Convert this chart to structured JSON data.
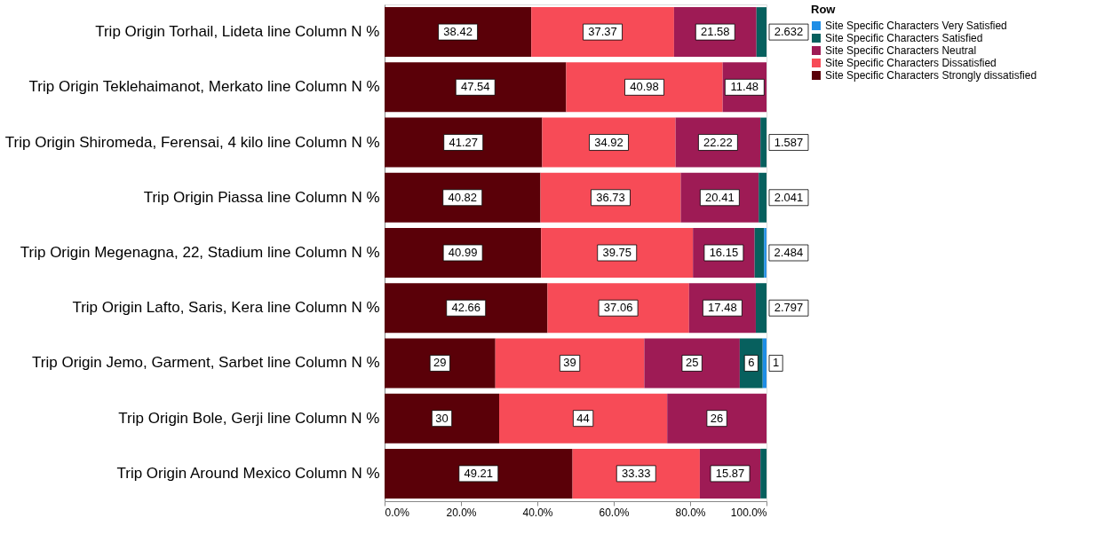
{
  "chart_data": {
    "type": "bar",
    "orientation": "horizontal",
    "stacked": true,
    "legend_title": "Row",
    "legend": "top right",
    "grid": false,
    "categories": [
      "Trip Origin Torhail, Lideta line Column N %",
      "Trip Origin Teklehaimanot, Merkato line Column N %",
      "Trip Origin Shiromeda, Ferensai, 4 kilo line Column N %",
      "Trip Origin Piassa line Column N %",
      "Trip Origin Megenagna, 22, Stadium line Column N %",
      "Trip Origin Lafto, Saris, Kera line Column N %",
      "Trip Origin Jemo, Garment, Sarbet line Column N %",
      "Trip Origin Bole, Gerji line Column N %",
      "Trip Origin Around Mexico Column N %"
    ],
    "xlim": [
      0,
      100
    ],
    "xticks": [
      {
        "value": 0,
        "label": "0.0%"
      },
      {
        "value": 20,
        "label": "20.0%"
      },
      {
        "value": 40,
        "label": "40.0%"
      },
      {
        "value": 60,
        "label": "60.0%"
      },
      {
        "value": 80,
        "label": "80.0%"
      },
      {
        "value": 100,
        "label": "100.0%"
      }
    ],
    "series": [
      {
        "name": "Site Specific Characters Strongly dissatisfied",
        "color": "#5a0008",
        "values": [
          38.42,
          47.54,
          41.27,
          40.82,
          40.99,
          42.66,
          29,
          30,
          49.21
        ],
        "value_labels": [
          "38.42",
          "47.54",
          "41.27",
          "40.82",
          "40.99",
          "42.66",
          "29",
          "30",
          "49.21"
        ]
      },
      {
        "name": "Site Specific Characters Dissatisfied",
        "color": "#f74b57",
        "values": [
          37.37,
          40.98,
          34.92,
          36.73,
          39.75,
          37.06,
          39,
          44,
          33.33
        ],
        "value_labels": [
          "37.37",
          "40.98",
          "34.92",
          "36.73",
          "39.75",
          "37.06",
          "39",
          "44",
          "33.33"
        ]
      },
      {
        "name": "Site Specific Characters Neutral",
        "color": "#9e1b55",
        "values": [
          21.58,
          11.48,
          22.22,
          20.41,
          16.15,
          17.48,
          25,
          26,
          15.87
        ],
        "value_labels": [
          "21.58",
          "11.48",
          "22.22",
          "20.41",
          "16.15",
          "17.48",
          "25",
          "26",
          "15.87"
        ]
      },
      {
        "name": "Site Specific Characters Satisfied",
        "color": "#07605e",
        "values": [
          2.632,
          null,
          1.587,
          2.041,
          2.484,
          2.797,
          6,
          null,
          1.6
        ],
        "value_labels": [
          "2.632",
          null,
          "1.587",
          "2.041",
          "2.484",
          "2.797",
          "6",
          null,
          null
        ]
      },
      {
        "name": "Site Specific Characters Very Satisfied",
        "color": "#1f8ee6",
        "values": [
          null,
          null,
          null,
          null,
          0.6,
          null,
          1,
          null,
          null
        ],
        "value_labels": [
          null,
          null,
          null,
          null,
          null,
          null,
          "1",
          null,
          null
        ]
      }
    ]
  }
}
